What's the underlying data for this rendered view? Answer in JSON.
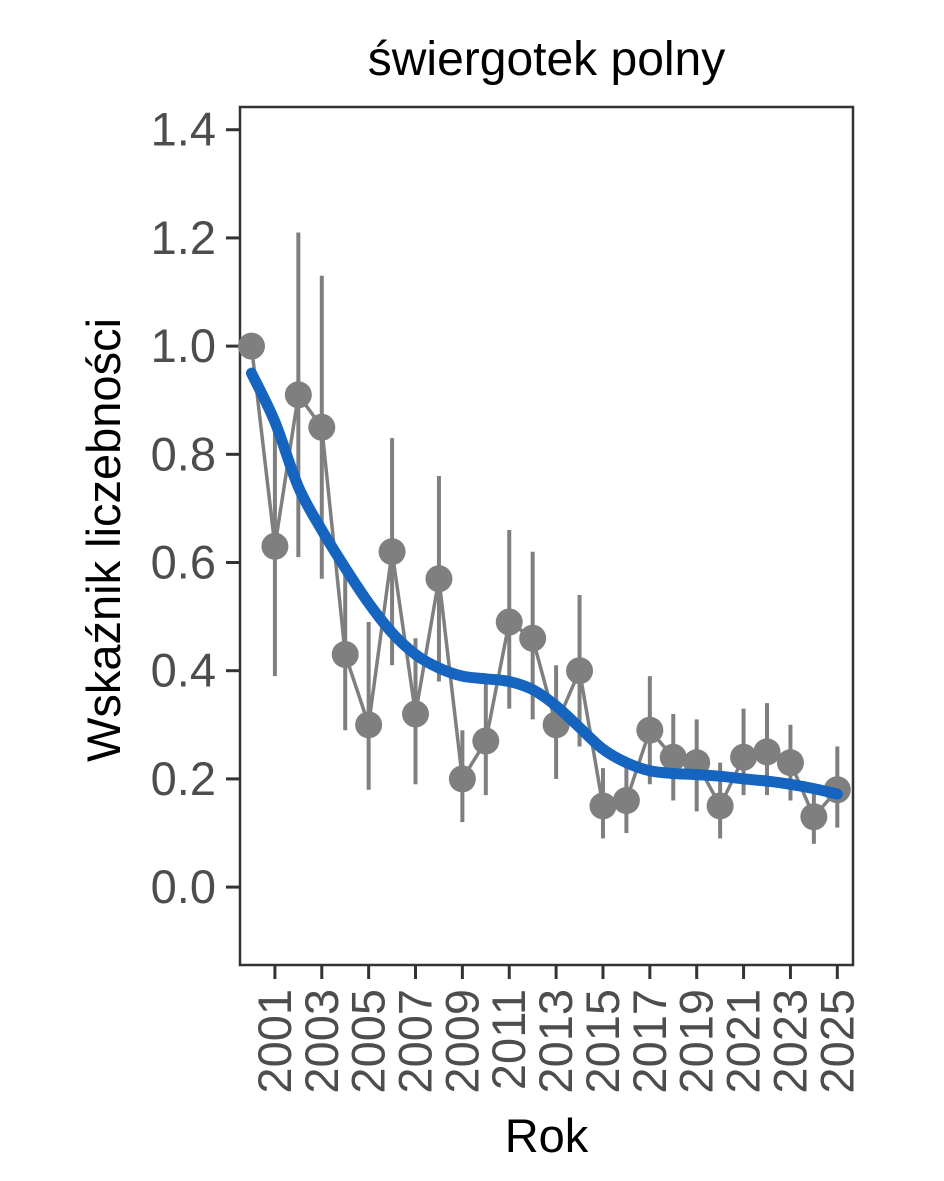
{
  "page": {
    "background": "#ffffff"
  },
  "chart_data": {
    "type": "scatter",
    "title": "świergotek polny",
    "xlabel": "Rok",
    "ylabel": "Wskaźnik liczebności",
    "legend": "none",
    "grid": false,
    "xlim": [
      1999.51,
      2025.67
    ],
    "ylim": [
      -0.144,
      1.442
    ],
    "x_ticks": [
      2001,
      2003,
      2005,
      2007,
      2009,
      2011,
      2013,
      2015,
      2017,
      2019,
      2021,
      2023,
      2025
    ],
    "y_ticks": [
      0.0,
      0.2,
      0.4,
      0.6,
      0.8,
      1.0,
      1.2,
      1.4
    ],
    "colors": {
      "points": "#7f7f7f",
      "error_bars": "#7f7f7f",
      "series_line": "#7f7f7f",
      "trend_line": "#1565c0",
      "axis_frame": "#333333",
      "tick_text": "#4d4d4d",
      "title_text": "#000000"
    },
    "series": [
      {
        "name": "abundance-index",
        "style": "points-with-error-bars",
        "points": [
          {
            "year": 2000,
            "value": 1.0,
            "lo": null,
            "hi": null
          },
          {
            "year": 2001,
            "value": 0.63,
            "lo": 0.39,
            "hi": 0.87
          },
          {
            "year": 2002,
            "value": 0.91,
            "lo": 0.61,
            "hi": 1.21
          },
          {
            "year": 2003,
            "value": 0.85,
            "lo": 0.57,
            "hi": 1.13
          },
          {
            "year": 2004,
            "value": 0.43,
            "lo": 0.29,
            "hi": 0.6
          },
          {
            "year": 2005,
            "value": 0.3,
            "lo": 0.18,
            "hi": 0.49
          },
          {
            "year": 2006,
            "value": 0.62,
            "lo": 0.41,
            "hi": 0.83
          },
          {
            "year": 2007,
            "value": 0.32,
            "lo": 0.19,
            "hi": 0.46
          },
          {
            "year": 2008,
            "value": 0.57,
            "lo": 0.38,
            "hi": 0.76
          },
          {
            "year": 2009,
            "value": 0.2,
            "lo": 0.12,
            "hi": 0.29
          },
          {
            "year": 2010,
            "value": 0.27,
            "lo": 0.17,
            "hi": 0.38
          },
          {
            "year": 2011,
            "value": 0.49,
            "lo": 0.33,
            "hi": 0.66
          },
          {
            "year": 2012,
            "value": 0.46,
            "lo": 0.31,
            "hi": 0.62
          },
          {
            "year": 2013,
            "value": 0.3,
            "lo": 0.2,
            "hi": 0.41
          },
          {
            "year": 2014,
            "value": 0.4,
            "lo": 0.26,
            "hi": 0.54
          },
          {
            "year": 2015,
            "value": 0.15,
            "lo": 0.09,
            "hi": 0.22
          },
          {
            "year": 2016,
            "value": 0.16,
            "lo": 0.1,
            "hi": 0.23
          },
          {
            "year": 2017,
            "value": 0.29,
            "lo": 0.19,
            "hi": 0.39
          },
          {
            "year": 2018,
            "value": 0.24,
            "lo": 0.16,
            "hi": 0.32
          },
          {
            "year": 2019,
            "value": 0.23,
            "lo": 0.14,
            "hi": 0.31
          },
          {
            "year": 2020,
            "value": 0.15,
            "lo": 0.09,
            "hi": 0.23
          },
          {
            "year": 2021,
            "value": 0.24,
            "lo": 0.17,
            "hi": 0.33
          },
          {
            "year": 2022,
            "value": 0.25,
            "lo": 0.17,
            "hi": 0.34
          },
          {
            "year": 2023,
            "value": 0.23,
            "lo": 0.16,
            "hi": 0.3
          },
          {
            "year": 2024,
            "value": 0.13,
            "lo": 0.08,
            "hi": 0.18
          },
          {
            "year": 2025,
            "value": 0.18,
            "lo": 0.11,
            "hi": 0.26
          }
        ]
      },
      {
        "name": "smoothed-trend",
        "style": "smooth-line",
        "points": [
          {
            "year": 2000,
            "value": 0.95
          },
          {
            "year": 2001,
            "value": 0.86
          },
          {
            "year": 2002,
            "value": 0.74
          },
          {
            "year": 2003,
            "value": 0.66
          },
          {
            "year": 2004,
            "value": 0.59
          },
          {
            "year": 2005,
            "value": 0.525
          },
          {
            "year": 2006,
            "value": 0.47
          },
          {
            "year": 2007,
            "value": 0.43
          },
          {
            "year": 2008,
            "value": 0.405
          },
          {
            "year": 2009,
            "value": 0.39
          },
          {
            "year": 2010,
            "value": 0.385
          },
          {
            "year": 2011,
            "value": 0.38
          },
          {
            "year": 2012,
            "value": 0.365
          },
          {
            "year": 2013,
            "value": 0.335
          },
          {
            "year": 2014,
            "value": 0.295
          },
          {
            "year": 2015,
            "value": 0.255
          },
          {
            "year": 2016,
            "value": 0.23
          },
          {
            "year": 2017,
            "value": 0.215
          },
          {
            "year": 2018,
            "value": 0.21
          },
          {
            "year": 2019,
            "value": 0.208
          },
          {
            "year": 2020,
            "value": 0.205
          },
          {
            "year": 2021,
            "value": 0.2
          },
          {
            "year": 2022,
            "value": 0.196
          },
          {
            "year": 2023,
            "value": 0.19
          },
          {
            "year": 2024,
            "value": 0.182
          },
          {
            "year": 2025,
            "value": 0.172
          }
        ]
      }
    ]
  }
}
